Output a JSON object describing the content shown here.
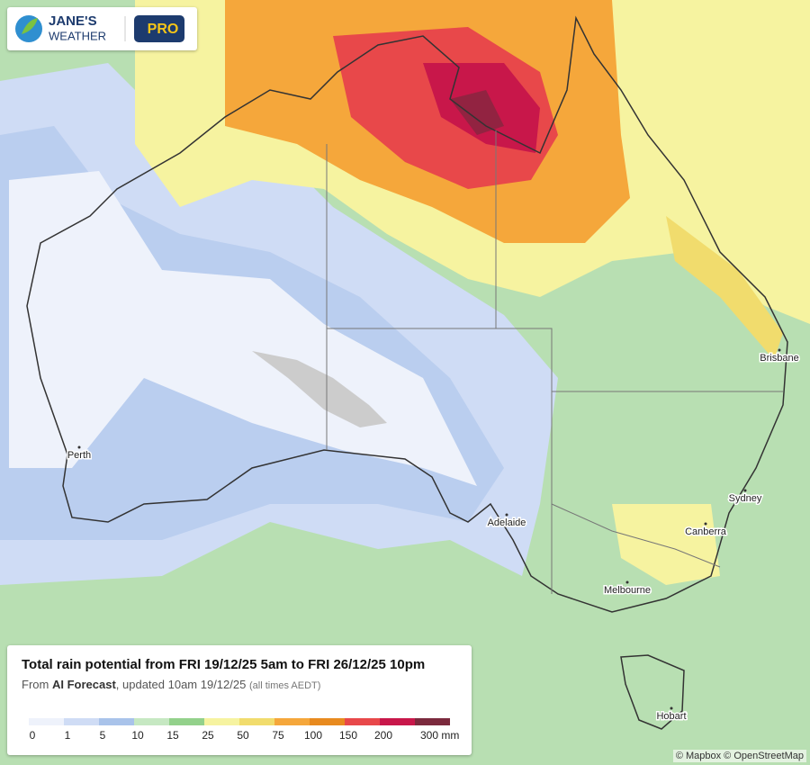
{
  "logo": {
    "line1": "JANE'S",
    "line2": "WEATHER",
    "badge": "PRO"
  },
  "cities": [
    {
      "name": "Brisbane"
    },
    {
      "name": "Perth"
    },
    {
      "name": "Sydney"
    },
    {
      "name": "Adelaide"
    },
    {
      "name": "Canberra"
    },
    {
      "name": "Melbourne"
    },
    {
      "name": "Hobart"
    }
  ],
  "legend": {
    "title": "Total rain potential from FRI 19/12/25 5am to FRI 26/12/25 10pm",
    "source_prefix": "From",
    "source": "AI Forecast",
    "source_suffix": ", updated 10am 19/12/25",
    "timezone_note": "(all times AEDT)",
    "colors": [
      "#eef2fb",
      "#cfdcf5",
      "#a9c3ea",
      "#c6e8c2",
      "#93d18b",
      "#f6f3a0",
      "#f1dc6d",
      "#f5a73b",
      "#e88a1f",
      "#e8484a",
      "#c8174a",
      "#7b2a3d"
    ],
    "ticks": [
      0,
      1,
      5,
      10,
      15,
      25,
      50,
      75,
      100,
      150,
      200,
      {
        "value": 300,
        "label": "300 mm"
      }
    ]
  },
  "attribution": "© Mapbox © OpenStreetMap"
}
